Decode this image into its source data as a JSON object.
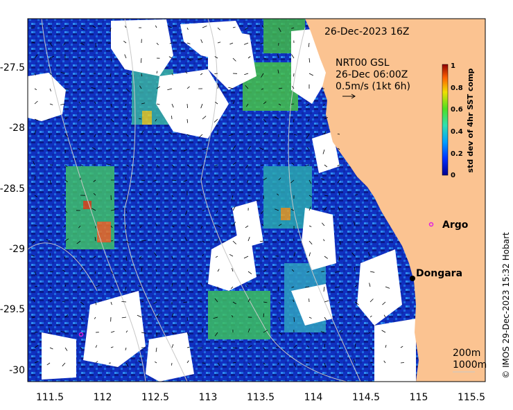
{
  "map": {
    "date_label": "26-Dec-2023 16Z",
    "current_model": "NRT00 GSL",
    "current_time": "26-Dec 06:00Z",
    "current_scale": "0.5m/s (1kt 6h)",
    "x_ticks": [
      "111.5",
      "112",
      "112.5",
      "113",
      "113.5",
      "114",
      "114.5",
      "115",
      "115.5"
    ],
    "y_ticks": [
      "-27.5",
      "-28",
      "-28.5",
      "-29",
      "-29.5",
      "-30"
    ],
    "places": [
      {
        "name": "Argo"
      },
      {
        "name": "Dongara"
      }
    ],
    "isobaths": [
      "200m",
      "1000m"
    ],
    "credit": "© IMOS 29-Dec-2023 15:32 Hobart",
    "colorbar": {
      "label": "std dev of 4hr SST comp",
      "ticks": [
        "1",
        "0.8",
        "0.6",
        "0.4",
        "0.2",
        "0"
      ]
    },
    "colors": {
      "land": "#fbc391",
      "no_data": "#ffffff",
      "argo": "#e020e0",
      "dongara": "#000000"
    }
  }
}
